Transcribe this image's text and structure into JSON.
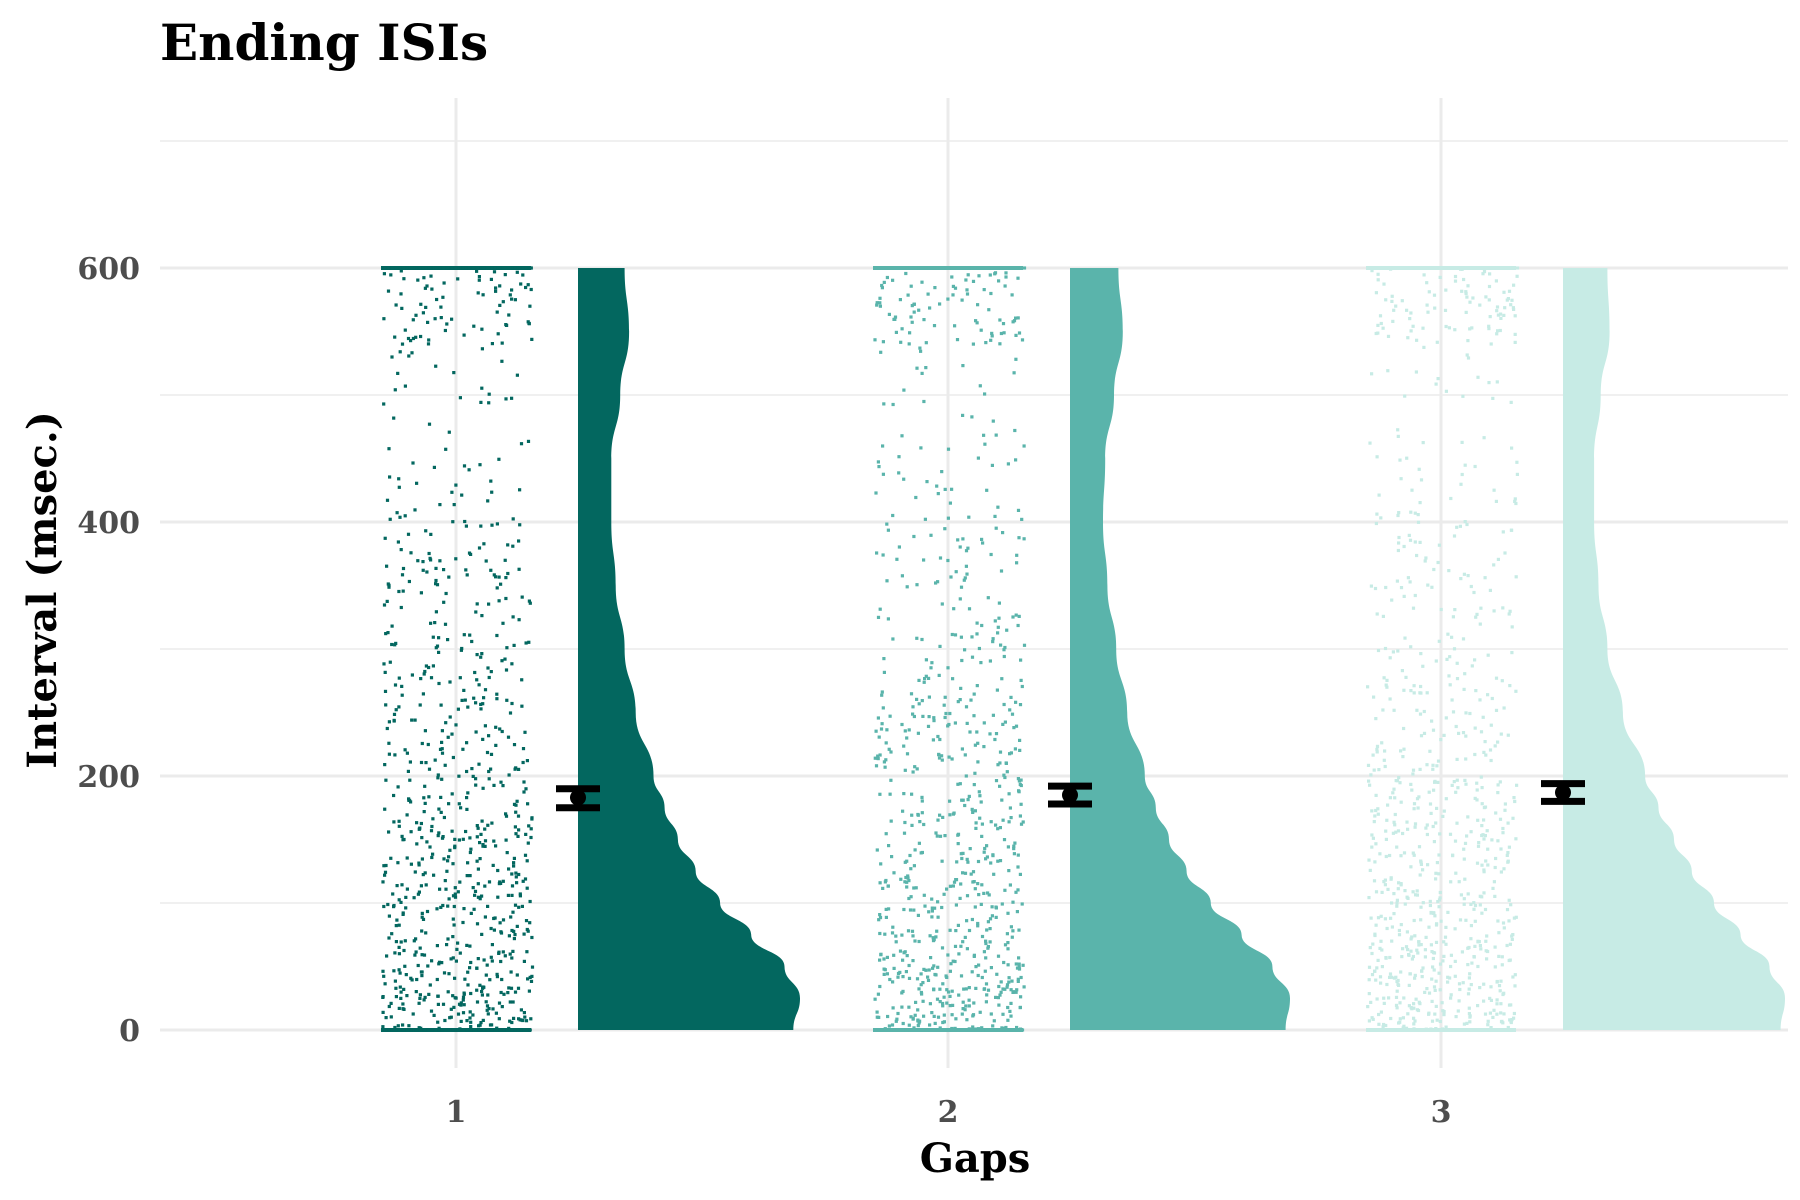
{
  "chart_data": {
    "type": "raincloud",
    "title": "Ending ISIs",
    "xlabel": "Gaps",
    "ylabel": "Interval (msec.)",
    "categories": [
      "1",
      "2",
      "3"
    ],
    "y_ticks": [
      0,
      200,
      400,
      600
    ],
    "ylim": [
      -30,
      710
    ],
    "grid": true,
    "legend": "none",
    "series": [
      {
        "category": "1",
        "color": "#03675f",
        "mean": 183,
        "ci_low": 175,
        "ci_high": 190,
        "range": [
          0,
          600
        ],
        "density": [
          [
            0,
            0.97
          ],
          [
            25,
            1.0
          ],
          [
            50,
            0.93
          ],
          [
            75,
            0.78
          ],
          [
            100,
            0.64
          ],
          [
            125,
            0.53
          ],
          [
            150,
            0.45
          ],
          [
            175,
            0.39
          ],
          [
            200,
            0.34
          ],
          [
            250,
            0.26
          ],
          [
            300,
            0.21
          ],
          [
            350,
            0.17
          ],
          [
            400,
            0.15
          ],
          [
            450,
            0.15
          ],
          [
            500,
            0.19
          ],
          [
            550,
            0.23
          ],
          [
            600,
            0.21
          ]
        ]
      },
      {
        "category": "2",
        "color": "#5ab4ab",
        "mean": 185,
        "ci_low": 178,
        "ci_high": 192,
        "range": [
          0,
          600
        ],
        "density": [
          [
            0,
            0.98
          ],
          [
            25,
            1.0
          ],
          [
            50,
            0.92
          ],
          [
            75,
            0.78
          ],
          [
            100,
            0.64
          ],
          [
            125,
            0.53
          ],
          [
            150,
            0.45
          ],
          [
            175,
            0.39
          ],
          [
            200,
            0.34
          ],
          [
            250,
            0.26
          ],
          [
            300,
            0.21
          ],
          [
            350,
            0.17
          ],
          [
            400,
            0.15
          ],
          [
            450,
            0.16
          ],
          [
            500,
            0.2
          ],
          [
            550,
            0.24
          ],
          [
            600,
            0.22
          ]
        ]
      },
      {
        "category": "3",
        "color": "#c7ebe5",
        "mean": 187,
        "ci_low": 180,
        "ci_high": 194,
        "range": [
          0,
          600
        ],
        "density": [
          [
            0,
            0.98
          ],
          [
            25,
            1.0
          ],
          [
            50,
            0.93
          ],
          [
            75,
            0.8
          ],
          [
            100,
            0.68
          ],
          [
            125,
            0.58
          ],
          [
            150,
            0.5
          ],
          [
            175,
            0.43
          ],
          [
            200,
            0.37
          ],
          [
            250,
            0.27
          ],
          [
            300,
            0.2
          ],
          [
            350,
            0.16
          ],
          [
            400,
            0.14
          ],
          [
            450,
            0.14
          ],
          [
            500,
            0.17
          ],
          [
            550,
            0.21
          ],
          [
            600,
            0.2
          ]
        ]
      }
    ]
  }
}
